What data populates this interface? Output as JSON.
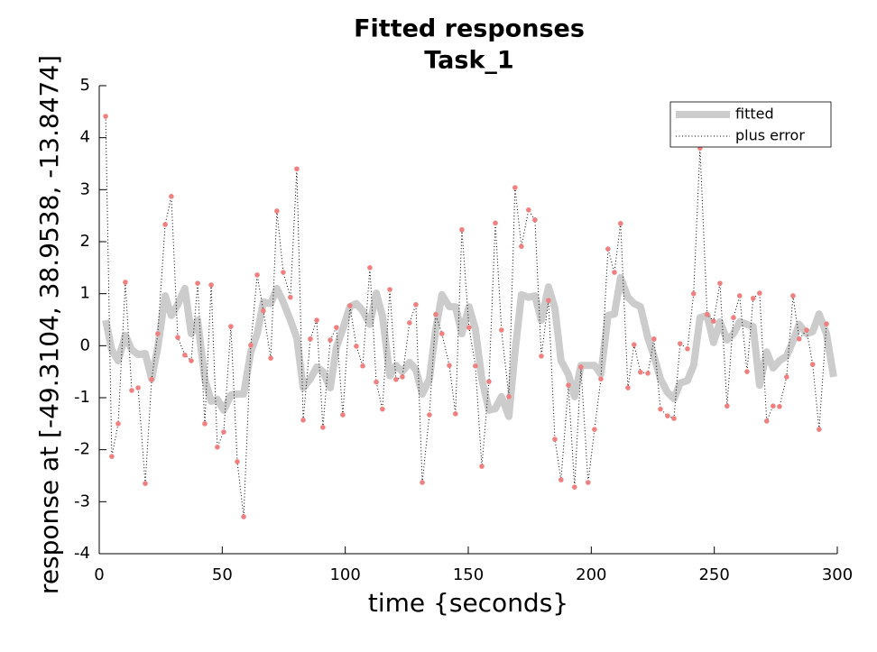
{
  "chart_data": {
    "type": "line",
    "title": [
      "Fitted responses",
      "Task_1"
    ],
    "xlabel": "time {seconds}",
    "ylabel": "response at [-49.3104, 38.9538, -13.8474]",
    "xlim": [
      0,
      300
    ],
    "xticks": [
      0,
      50,
      100,
      150,
      200,
      250,
      300
    ],
    "ylim": [
      -4,
      5
    ],
    "yticks": [
      -4,
      -3,
      -2,
      -1,
      0,
      1,
      2,
      3,
      4,
      5
    ],
    "legend": "upper right",
    "series": [
      {
        "name": "fitted",
        "color": "#cccccc",
        "style": "solid",
        "x": [
          2.6,
          5.1,
          7.7,
          10.6,
          13.2,
          15.8,
          18.7,
          21.3,
          23.8,
          26.8,
          29.3,
          31.9,
          34.8,
          37.4,
          40,
          42.9,
          45.5,
          48,
          50.6,
          53.5,
          56.1,
          58.7,
          61.6,
          64.2,
          66.7,
          69.7,
          72.2,
          74.8,
          77.7,
          80.3,
          82.9,
          85.8,
          88.4,
          90.9,
          93.9,
          96.4,
          99,
          101.9,
          104.5,
          107.1,
          110,
          112.6,
          115.1,
          118.1,
          120.6,
          123.2,
          126.1,
          128.7,
          131.3,
          134.2,
          136.8,
          139.3,
          142.3,
          144.8,
          147.4,
          150.3,
          152.9,
          155.5,
          158.4,
          161,
          163.5,
          166.5,
          169,
          171.6,
          174.5,
          177.1,
          179.7,
          182.6,
          185.2,
          187.7,
          190.7,
          193.2,
          195.8,
          198.7,
          201.3,
          203.9,
          206.8,
          209.4,
          211.9,
          214.9,
          217.4,
          220,
          223,
          225.5,
          228.1,
          231,
          233.6,
          236.1,
          239.1,
          241.6,
          244.2,
          247.1,
          249.7,
          252.3,
          255.2,
          257.8,
          260.3,
          263.3,
          265.8,
          268.4,
          271.3,
          273.9,
          276.5,
          279.4,
          282,
          284.5,
          287.5,
          290,
          292.6,
          295.6,
          298.5
        ],
        "values": [
          0.49,
          -0.08,
          -0.29,
          0.2,
          -0.08,
          -0.17,
          -0.15,
          -0.64,
          -0.03,
          0.96,
          0.58,
          0.79,
          1.1,
          0.23,
          0.49,
          -0.64,
          -1.07,
          -1.03,
          -1.24,
          -0.95,
          -0.93,
          -0.93,
          -0.12,
          0.23,
          0.84,
          0.81,
          1.1,
          0.84,
          0.49,
          0.15,
          -0.81,
          -0.64,
          -0.41,
          -0.5,
          -0.81,
          -0.03,
          0.32,
          0.75,
          0.81,
          0.67,
          0.41,
          1.01,
          0.58,
          -0.58,
          -0.38,
          -0.5,
          -0.32,
          -0.46,
          -0.93,
          -0.64,
          0.32,
          0.98,
          0.75,
          0.75,
          0.23,
          0.75,
          0.32,
          -0.64,
          -1.24,
          -1.21,
          -0.98,
          -1.36,
          -0.12,
          0.98,
          0.93,
          0.96,
          0.49,
          1.13,
          0.72,
          -0.29,
          -0.55,
          -0.98,
          -0.38,
          -0.38,
          -0.38,
          -0.55,
          0.58,
          0.61,
          1.31,
          0.93,
          0.81,
          0.75,
          0.15,
          -0.2,
          -0.64,
          -0.9,
          -1.02,
          -0.72,
          -0.67,
          -0.38,
          0.54,
          0.58,
          0.06,
          0.46,
          0.11,
          0.23,
          0.46,
          0.41,
          0.37,
          -0.76,
          -0.12,
          -0.43,
          -0.29,
          -0.2,
          0.09,
          0.41,
          0.23,
          0.27,
          0.61,
          0.23,
          -0.6
        ]
      },
      {
        "name": "plus error",
        "color": "#000000",
        "marker_color": "#f08080",
        "style": "dotted",
        "x": [
          2.6,
          5.1,
          7.7,
          10.6,
          13.2,
          15.8,
          18.7,
          21.3,
          23.8,
          26.8,
          29.3,
          31.9,
          34.8,
          37.4,
          40,
          42.9,
          45.5,
          48,
          50.6,
          53.5,
          56.1,
          58.7,
          61.6,
          64.2,
          66.7,
          69.7,
          72.2,
          74.8,
          77.7,
          80.3,
          82.9,
          85.8,
          88.4,
          90.9,
          93.9,
          96.4,
          99,
          101.9,
          104.5,
          107.1,
          110,
          112.6,
          115.1,
          118.1,
          120.6,
          123.2,
          126.1,
          128.7,
          131.3,
          134.2,
          136.8,
          139.3,
          142.3,
          144.8,
          147.4,
          150.3,
          152.9,
          155.5,
          158.4,
          161,
          163.5,
          166.5,
          169,
          171.6,
          174.5,
          177.1,
          179.7,
          182.6,
          185.2,
          187.7,
          190.7,
          193.2,
          195.8,
          198.7,
          201.3,
          203.9,
          206.8,
          209.4,
          211.9,
          214.9,
          217.4,
          220,
          223,
          225.5,
          228.1,
          231,
          233.6,
          236.1,
          239.1,
          241.6,
          244.2,
          247.1,
          249.7,
          252.3,
          255.2,
          257.8,
          260.3,
          263.3,
          265.8,
          268.4,
          271.3,
          273.9,
          276.5,
          279.4,
          282,
          284.5,
          287.5,
          290,
          292.6,
          295.6
        ],
        "values": [
          4.41,
          -2.13,
          -1.5,
          1.22,
          -0.86,
          -0.81,
          -2.65,
          -0.65,
          0.23,
          2.33,
          2.87,
          0.16,
          -0.18,
          -0.29,
          1.2,
          -1.5,
          1.17,
          -1.95,
          -1.66,
          0.37,
          -2.23,
          -3.29,
          0.01,
          1.36,
          0.67,
          -0.24,
          2.59,
          1.41,
          0.93,
          3.4,
          -1.43,
          0.13,
          0.49,
          -1.57,
          0.11,
          0.35,
          -1.33,
          0.77,
          -0.01,
          -0.39,
          1.5,
          -0.7,
          -1.22,
          1.08,
          -0.65,
          -0.6,
          0.44,
          0.79,
          -2.63,
          -1.33,
          0.6,
          0.23,
          -0.38,
          -1.31,
          2.23,
          0.35,
          -0.39,
          -2.32,
          -0.69,
          2.36,
          0.3,
          -0.98,
          3.04,
          1.91,
          2.61,
          2.42,
          -0.2,
          0.87,
          -1.8,
          -2.58,
          -0.76,
          -2.72,
          -0.41,
          -2.63,
          -1.61,
          -0.64,
          1.86,
          1.41,
          2.35,
          -0.81,
          0.02,
          -0.51,
          -0.53,
          0.13,
          -1.22,
          -1.35,
          -1.4,
          0.04,
          -0.06,
          1.0,
          3.8,
          0.6,
          0.47,
          1.2,
          -1.16,
          0.54,
          0.96,
          -0.5,
          0.91,
          1.01,
          -1.45,
          -1.16,
          -1.17,
          -0.6,
          0.96,
          0.13,
          0.3,
          -0.36,
          -1.61,
          0.42
        ]
      }
    ]
  }
}
